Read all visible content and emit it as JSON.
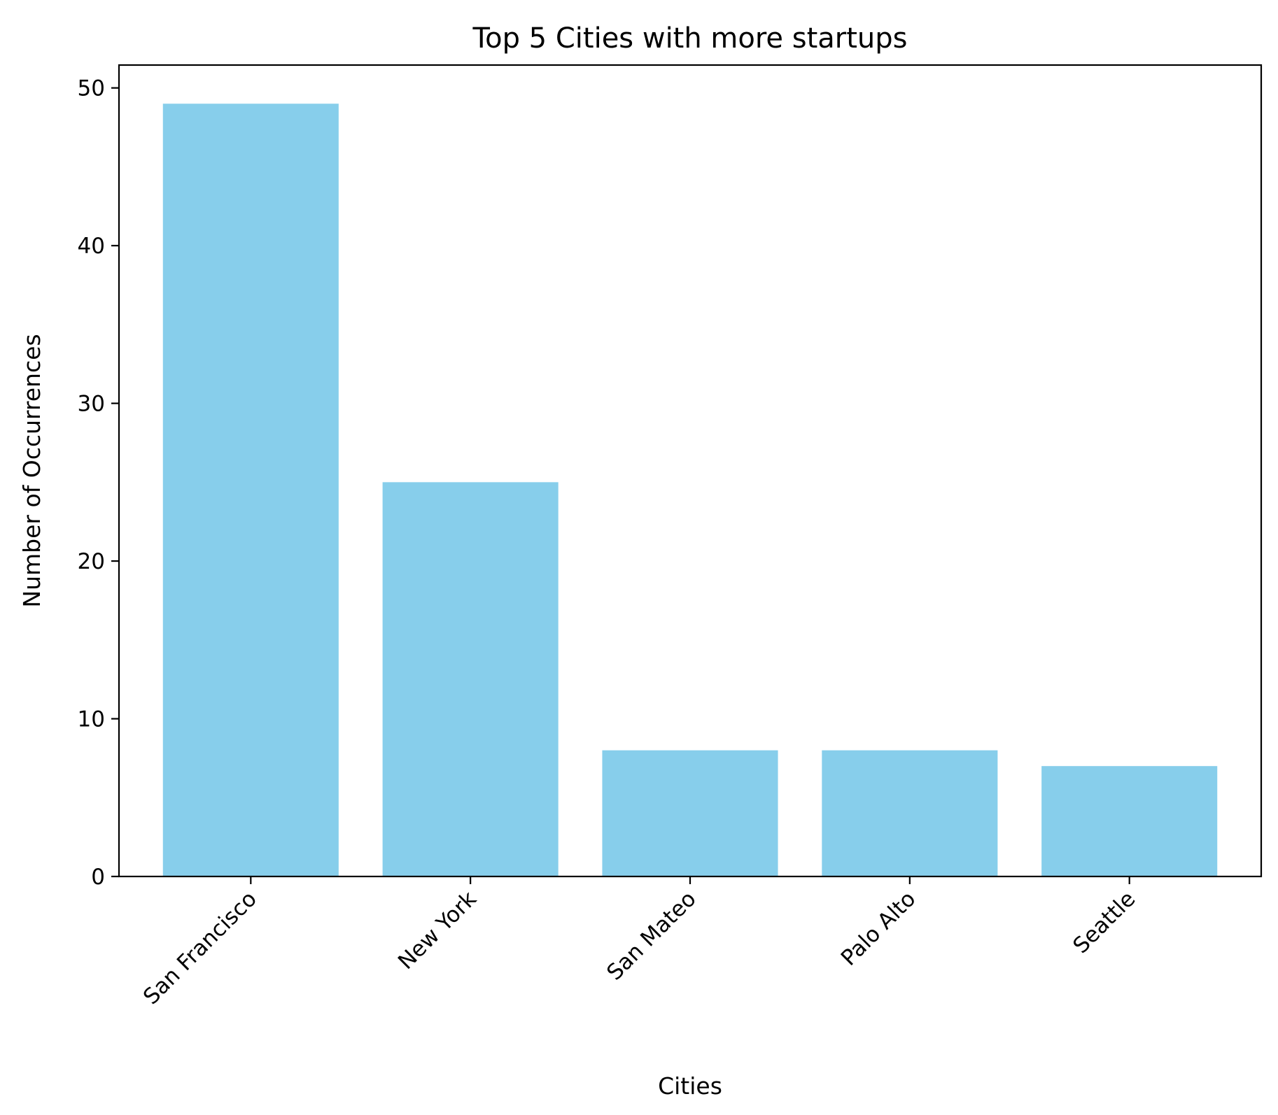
{
  "chart_data": {
    "type": "bar",
    "title": "Top 5 Cities with more startups",
    "xlabel": "Cities",
    "ylabel": "Number of Occurrences",
    "categories": [
      "San Francisco",
      "New York",
      "San Mateo",
      "Palo Alto",
      "Seattle"
    ],
    "values": [
      49,
      25,
      8,
      8,
      7
    ],
    "ylim": [
      0,
      51.45
    ],
    "yticks": [
      0,
      10,
      20,
      30,
      40,
      50
    ],
    "bar_color": "#87CEEB",
    "grid": false,
    "legend": "none"
  }
}
